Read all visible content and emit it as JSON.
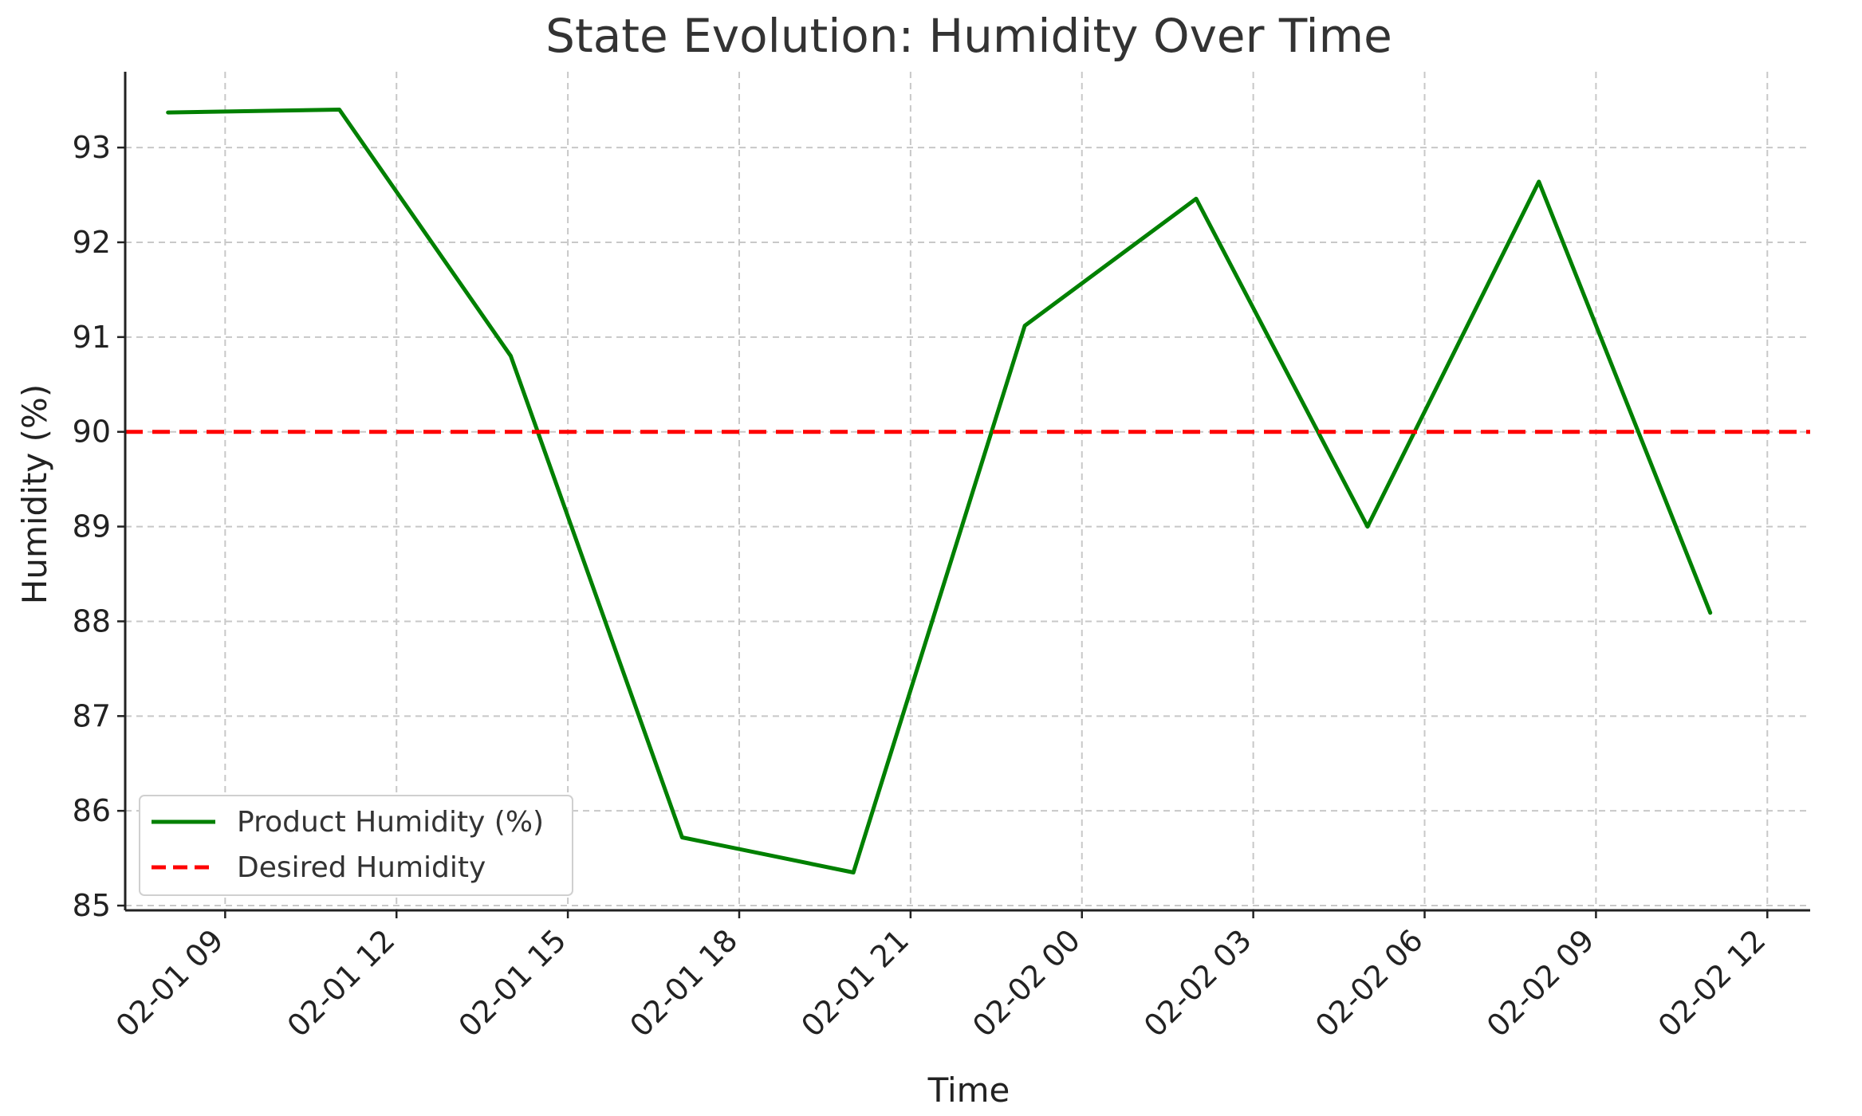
{
  "chart_data": {
    "type": "line",
    "title": "State Evolution: Humidity Over Time",
    "xlabel": "Time",
    "ylabel": "Humidity (%)",
    "ylim": [
      84.95,
      93.8
    ],
    "xlim": [
      "2023-02-01 07:15",
      "2023-02-02 12:45"
    ],
    "grid": true,
    "legend_position": "lower-left",
    "y_ticks": [
      85,
      86,
      87,
      88,
      89,
      90,
      91,
      92,
      93
    ],
    "x_ticks": [
      {
        "t": "2023-02-01 09:00",
        "label": "02-01 09"
      },
      {
        "t": "2023-02-01 12:00",
        "label": "02-01 12"
      },
      {
        "t": "2023-02-01 15:00",
        "label": "02-01 15"
      },
      {
        "t": "2023-02-01 18:00",
        "label": "02-01 18"
      },
      {
        "t": "2023-02-01 21:00",
        "label": "02-01 21"
      },
      {
        "t": "2023-02-02 00:00",
        "label": "02-02 00"
      },
      {
        "t": "2023-02-02 03:00",
        "label": "02-02 03"
      },
      {
        "t": "2023-02-02 06:00",
        "label": "02-02 06"
      },
      {
        "t": "2023-02-02 09:00",
        "label": "02-02 09"
      },
      {
        "t": "2023-02-02 12:00",
        "label": "02-02 12"
      }
    ],
    "series": [
      {
        "name": "Product Humidity (%)",
        "color": "#008000",
        "style": "solid",
        "points": [
          {
            "x": "2023-02-01 08:00",
            "y": 93.37
          },
          {
            "x": "2023-02-01 11:00",
            "y": 93.4
          },
          {
            "x": "2023-02-01 14:00",
            "y": 90.8
          },
          {
            "x": "2023-02-01 17:00",
            "y": 85.72
          },
          {
            "x": "2023-02-01 20:00",
            "y": 85.35
          },
          {
            "x": "2023-02-01 23:00",
            "y": 91.12
          },
          {
            "x": "2023-02-02 02:00",
            "y": 92.46
          },
          {
            "x": "2023-02-02 05:00",
            "y": 89.0
          },
          {
            "x": "2023-02-02 08:00",
            "y": 92.64
          },
          {
            "x": "2023-02-02 11:00",
            "y": 88.09
          }
        ]
      },
      {
        "name": "Desired Humidity",
        "color": "#ff0000",
        "style": "dashed",
        "constant": 90
      }
    ]
  }
}
